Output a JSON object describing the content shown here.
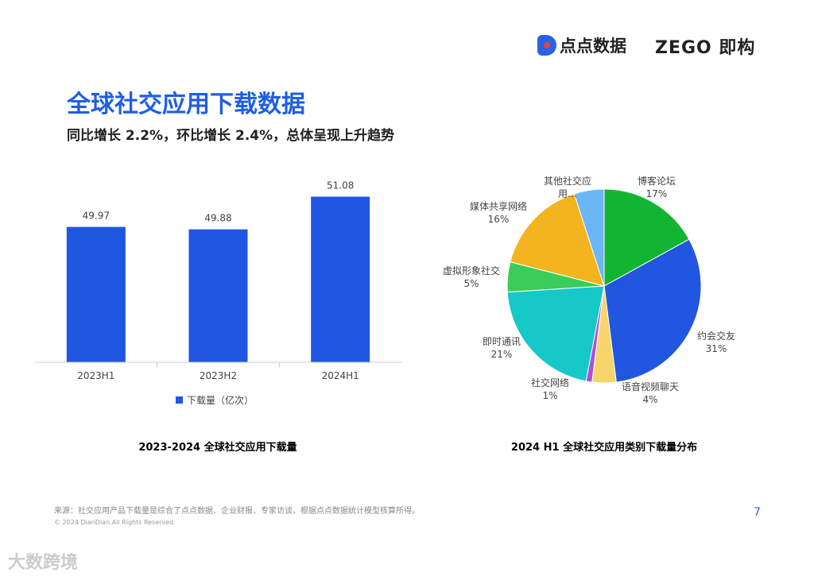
{
  "header": {
    "logo_dian": "点点数据",
    "logo_zego": "ZEGO",
    "logo_zego_cn": "即构",
    "title": "全球社交应用下载数据",
    "subtitle": "同比增长 2.2%，环比增长 2.4%，总体呈现上升趋势"
  },
  "chart_data": [
    {
      "type": "bar",
      "title": "2023-2024 全球社交应用下载量",
      "categories": [
        "2023H1",
        "2023H2",
        "2024H1"
      ],
      "series": [
        {
          "name": "下载量（亿次）",
          "values": [
            49.97,
            49.88,
            51.08
          ],
          "color": "#1f57e0"
        }
      ],
      "ylim": [
        45,
        52
      ],
      "grid": false,
      "legend": "bottom"
    },
    {
      "type": "pie",
      "title": "2024 H1 全球社交应用类别下载量分布",
      "slices": [
        {
          "label": "博客论坛",
          "value": 17,
          "pct": "17%",
          "color": "#12b531"
        },
        {
          "label": "约会交友",
          "value": 31,
          "pct": "31%",
          "color": "#2157e0"
        },
        {
          "label": "语音视频聊天",
          "value": 4,
          "pct": "4%",
          "color": "#f7d56b"
        },
        {
          "label": "社交网络",
          "value": 1,
          "pct": "1%",
          "color": "#b04fd6"
        },
        {
          "label": "即时通讯",
          "value": 21,
          "pct": "21%",
          "color": "#16c8c8"
        },
        {
          "label": "虚拟形象社交",
          "value": 5,
          "pct": "5%",
          "color": "#3ccc5a"
        },
        {
          "label": "媒体共享网络",
          "value": 16,
          "pct": "16%",
          "color": "#f4b41f"
        },
        {
          "label": "其他社交应用…",
          "value": 5,
          "pct": "",
          "color": "#6ab6f7"
        }
      ],
      "legend": "none"
    }
  ],
  "footer": {
    "source": "来源：社交应用产品下载量是综合了点点数据、企业财报、专家访谈，根据点点数据统计模型核算所得。",
    "copyright": "© 2024 DianDian.All Rights Reserved.",
    "page": "7",
    "watermark": "大数跨境"
  }
}
